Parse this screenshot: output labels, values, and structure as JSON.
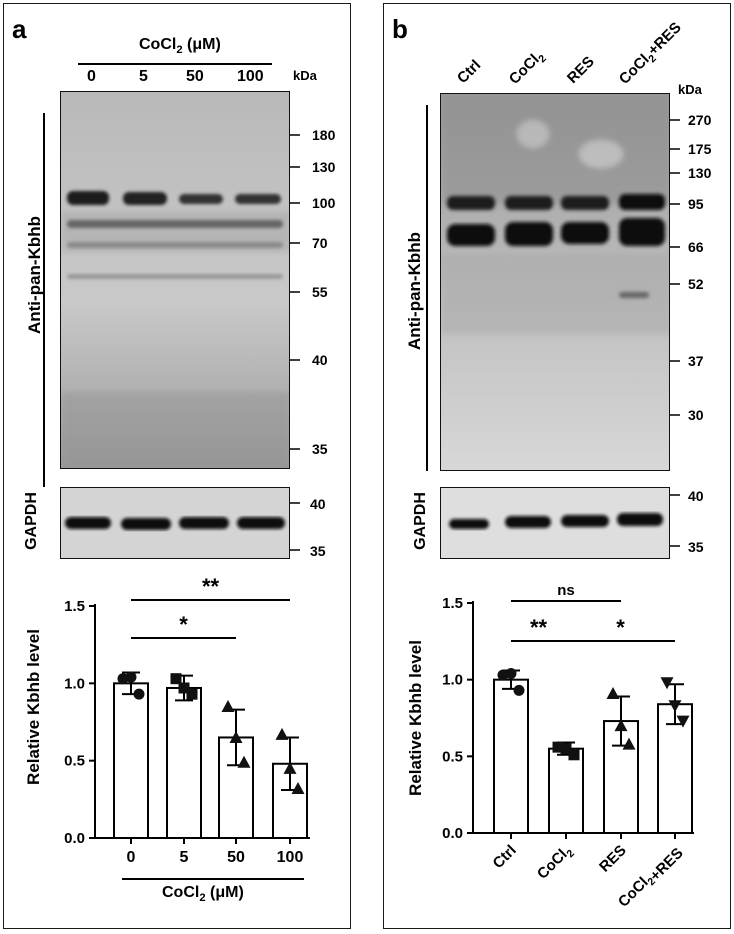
{
  "panel_a": {
    "letter": "a",
    "treatment_title": "CoCl2 (μM)",
    "lanes": [
      "0",
      "5",
      "50",
      "100"
    ],
    "kda_label": "kDa",
    "markers": [
      "180",
      "130",
      "100",
      "70",
      "55",
      "40",
      "35"
    ],
    "antibody_label": "Anti-pan-Kbhb",
    "loading_label": "GAPDH",
    "loading_markers": [
      "40",
      "35"
    ]
  },
  "panel_b": {
    "letter": "b",
    "lanes": [
      "Ctrl",
      "CoCl2",
      "RES",
      "CoCl2+RES"
    ],
    "kda_label": "kDa",
    "markers": [
      "270",
      "175",
      "130",
      "95",
      "66",
      "52",
      "37",
      "30"
    ],
    "antibody_label": "Anti-pan-Kbhb",
    "loading_label": "GAPDH",
    "loading_markers": [
      "40",
      "35"
    ]
  },
  "chart_data": [
    {
      "type": "bar",
      "categories": [
        "0",
        "5",
        "50",
        "100"
      ],
      "values": [
        1.0,
        0.97,
        0.65,
        0.48
      ],
      "errors": [
        0.07,
        0.08,
        0.18,
        0.17
      ],
      "points": [
        [
          1.03,
          0.93,
          1.04
        ],
        [
          1.03,
          0.93,
          0.97
        ],
        [
          0.85,
          0.49,
          0.65
        ],
        [
          0.67,
          0.32,
          0.45
        ]
      ],
      "point_marker": "circle, square, triangle",
      "ylabel": "Relative Kbhb level",
      "xlabel": "CoCl2 (μM)",
      "ylim": [
        0,
        1.5
      ],
      "yticks": [
        "0.0",
        "0.5",
        "1.0",
        "1.5"
      ],
      "significance": [
        {
          "from": "0",
          "to": "50",
          "label": "*"
        },
        {
          "from": "0",
          "to": "100",
          "label": "**"
        }
      ]
    },
    {
      "type": "bar",
      "categories": [
        "Ctrl",
        "CoCl2",
        "RES",
        "CoCl2+RES"
      ],
      "values": [
        1.0,
        0.55,
        0.73,
        0.84
      ],
      "errors": [
        0.06,
        0.04,
        0.16,
        0.13
      ],
      "points": [
        [
          1.03,
          0.93,
          1.04
        ],
        [
          0.56,
          0.51,
          0.55
        ],
        [
          0.91,
          0.58,
          0.7
        ],
        [
          0.98,
          0.73,
          0.83
        ]
      ],
      "point_marker": "circle, square, triangle, inverted triangle",
      "ylabel": "Relative Kbhb level",
      "ylim": [
        0,
        1.5
      ],
      "yticks": [
        "0.0",
        "0.5",
        "1.0",
        "1.5"
      ],
      "significance": [
        {
          "from": "Ctrl",
          "to": "RES",
          "label": "ns"
        },
        {
          "from": "Ctrl",
          "to": "CoCl2",
          "label": "**"
        },
        {
          "from": "CoCl2",
          "to": "CoCl2+RES",
          "label": "*"
        }
      ]
    }
  ]
}
